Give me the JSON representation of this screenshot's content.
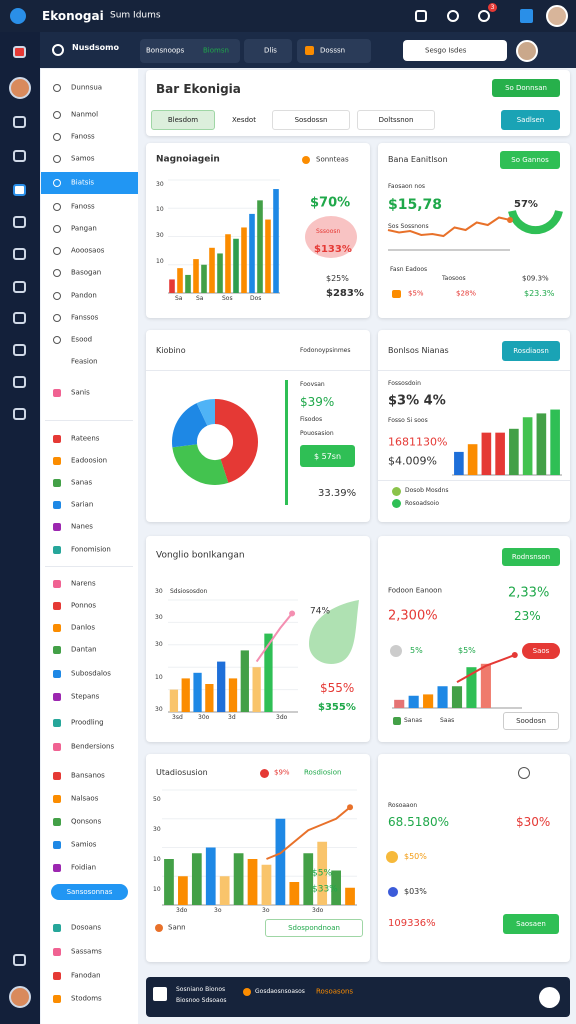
{
  "topbar": {
    "brand": "Ekonogai",
    "search": "Sum Idums",
    "badge": "3"
  },
  "nav": {
    "title": "Nusdsomo",
    "tabs": [
      "Bonsnoops",
      "Biomsn",
      "Dlis",
      "Dosssn"
    ],
    "search": "Sesgo Isdes"
  },
  "sidebar": {
    "items": [
      "Dunnsua",
      "Nanmol",
      "Fanoss",
      "Samos",
      "Biatsis",
      "Fanoss",
      "Pangan",
      "Aooosaos",
      "Basogan",
      "Pandon",
      "Fanssos",
      "Esood",
      "Feasion",
      "Sanis",
      "Rateens",
      "Eadoosion",
      "Sanas",
      "Sarian",
      "Nanes",
      "Fonomision",
      "Narens",
      "Ponnos",
      "Danlos",
      "Dantan",
      "Subosdalos",
      "Stepans",
      "Proodling",
      "Bendersions",
      "Bansanos",
      "Nalsaos",
      "Qonsons",
      "Samios",
      "Foidian",
      "Dosoans",
      "Sassams",
      "Fanodan",
      "Stodoms"
    ],
    "button": "Sansosonnas"
  },
  "header": {
    "title": "Bar Ekonigia",
    "button": "So Donnsan",
    "tabs": [
      "Blesdom",
      "Xesdot",
      "Sosdossn",
      "Doltssnon"
    ],
    "action": "Sadlsen"
  },
  "cards": [
    {
      "title": "Nagnoiagein",
      "legend": "Sonnteas",
      "axis_labels": [
        "30",
        "10",
        "30",
        "10"
      ],
      "x_labels": [
        "Sa",
        "Sa",
        "Sos",
        "Dos"
      ],
      "stats": [
        "$70%",
        "Sssoosn",
        "$133%",
        "$25%",
        "$283%"
      ],
      "chart": {
        "type": "bar",
        "ylim": [
          0,
          100
        ],
        "values": [
          12,
          22,
          16,
          30,
          25,
          40,
          35,
          52,
          48,
          58,
          70,
          82,
          65,
          92
        ],
        "colors": [
          "#e53935",
          "#fb8c00",
          "#43a047",
          "#fb8c00",
          "#43a047",
          "#fb8c00",
          "#43a047",
          "#fb8c00",
          "#2e9e4f",
          "#fb8c00",
          "#1e88e5",
          "#43a047",
          "#fb8c00",
          "#1e88e5"
        ]
      }
    },
    {
      "title": "Bana Eanitlson",
      "button": "So Gannos",
      "stats": [
        "Faosaon nos",
        "$15,78",
        "Sos Sossnons",
        "57%"
      ],
      "legend": [
        "Fasn Eadoos",
        "Taosoos",
        "$09.3%",
        "$5%",
        "$28%",
        "$23.3%"
      ],
      "chart": {
        "type": "line",
        "ylim": [
          0,
          100
        ],
        "color": "#e8712a",
        "values": [
          40,
          35,
          38,
          30,
          32,
          28,
          45,
          40,
          55,
          50,
          65,
          60
        ]
      }
    },
    {
      "title": "Kiobino",
      "legend": "Fodonoypsinmes",
      "stats": [
        "Foovsan",
        "$39%",
        "Fisodos",
        "Pouosasion",
        "$ 57sn",
        "33.39%"
      ],
      "chart": {
        "type": "pie",
        "values": [
          45,
          28,
          20,
          7
        ],
        "colors": [
          "#e53935",
          "#43c34f",
          "#1e88e5",
          "#4fb3f6"
        ]
      }
    },
    {
      "title": "Bonlsos Nianas",
      "button": "Rosdiaosn",
      "stats": [
        "Fossosdoin",
        "$3% 4%",
        "Fosso Si soos",
        "1681130%",
        "$4.009%"
      ],
      "legend": [
        "Dosob Mosdns",
        "Rosoadsoio"
      ],
      "chart": {
        "type": "bar",
        "ylim": [
          0,
          100
        ],
        "values": [
          30,
          40,
          55,
          55,
          60,
          75,
          80,
          85
        ],
        "colors": [
          "#1e6fd9",
          "#fb8c00",
          "#e53935",
          "#e53935",
          "#43a047",
          "#43c34f",
          "#43a047",
          "#2fbf55"
        ]
      }
    },
    {
      "title": "Vonglio bonIkangan",
      "chart_label": "Sdsiososdon",
      "axis_labels": [
        "30",
        "30",
        "30",
        "10",
        "30"
      ],
      "x_labels": [
        "3sd",
        "30o",
        "3d",
        "3do"
      ],
      "stats": [
        "74%",
        "$55%",
        "$355%"
      ],
      "chart": {
        "type": "bar",
        "ylim": [
          0,
          100
        ],
        "values": [
          20,
          30,
          35,
          25,
          45,
          30,
          55,
          40,
          70,
          null,
          null
        ],
        "colors": [
          "#f9c46b",
          "#fb8c00",
          "#1e88e5",
          "#fb8c00",
          "#1e6fd9",
          "#fb8c00",
          "#43a047",
          "#f9c46b",
          "#2fbf55",
          "#43a047",
          "#43a047"
        ],
        "line": {
          "color": "#f48fb1",
          "values": [
            null,
            null,
            null,
            null,
            null,
            null,
            null,
            45,
            60,
            75,
            88
          ]
        }
      }
    },
    {
      "button": "Rodnsnson",
      "title": "Fodoon Eanoon",
      "stats": [
        "2,33%",
        "2,300%",
        "23%",
        "5%",
        "$5%",
        "Saos"
      ],
      "legend": [
        "Sanas",
        "Saas"
      ],
      "action": "Soodosn",
      "chart": {
        "type": "bar",
        "ylim": [
          0,
          100
        ],
        "values": [
          12,
          18,
          20,
          32,
          32,
          60,
          65,
          null,
          null
        ],
        "colors": [
          "#e57373",
          "#1e88e5",
          "#fb8c00",
          "#1e88e5",
          "#43a047",
          "#2fbf55",
          "#ef7a6c",
          "#43a047",
          "#43a047"
        ],
        "line": {
          "color": "#e53935",
          "values": [
            null,
            null,
            null,
            null,
            38,
            50,
            62,
            70,
            78
          ]
        }
      }
    },
    {
      "title": "Utadiosusion",
      "legend": [
        "$9%",
        "Rosdiosion"
      ],
      "axis_labels": [
        "50",
        "30",
        "10",
        "10"
      ],
      "x_labels": [
        "3do",
        "3o",
        "3o",
        "3do"
      ],
      "stats": [
        "$5%",
        "$33%"
      ],
      "footer": "Sann",
      "action": "Sdospondnoan",
      "chart": {
        "type": "bar",
        "ylim": [
          0,
          100
        ],
        "values": [
          40,
          25,
          45,
          50,
          25,
          45,
          40,
          35,
          75,
          20,
          45,
          55,
          30,
          15
        ],
        "colors": [
          "#43a047",
          "#fb8c00",
          "#43a047",
          "#1e88e5",
          "#f9c46b",
          "#43a047",
          "#fb8c00",
          "#f9c46b",
          "#1e88e5",
          "#fb8c00",
          "#43a047",
          "#f9c46b",
          "#43a047",
          "#fb8c00"
        ],
        "line": {
          "color": "#e8712a",
          "values": [
            null,
            null,
            null,
            null,
            null,
            null,
            null,
            40,
            45,
            55,
            65,
            70,
            75,
            85
          ]
        }
      }
    },
    {
      "title": "Rosoaaon",
      "stats": [
        "68.5180%",
        "$30%",
        "$50%",
        "$03%",
        "109336%"
      ],
      "action": "Saosaen"
    }
  ],
  "bottombar": {
    "title": "Sosniano Bionos",
    "subtitle": "Biosnoo Sdsoaos",
    "link": "Gosdaosnsoasos",
    "status": "Rosoasons"
  }
}
